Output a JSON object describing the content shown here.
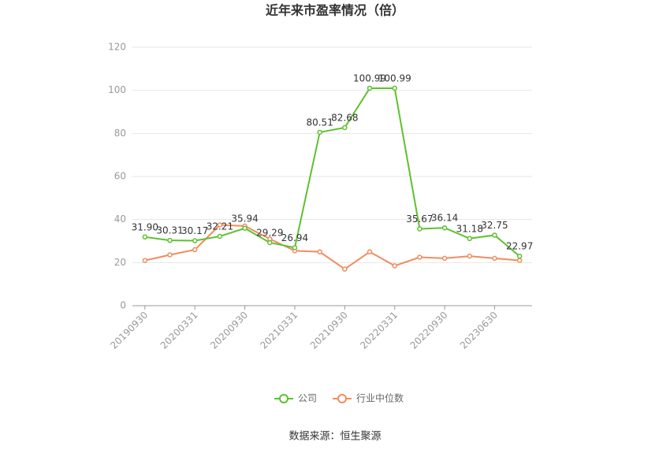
{
  "chart_data": {
    "type": "line",
    "title": "近年来市盈率情况（倍）",
    "categories": [
      "20190930",
      null,
      "20200331",
      null,
      "20200930",
      null,
      "20210331",
      null,
      "20210930",
      null,
      "20220331",
      null,
      "20220930",
      null,
      "20230630",
      null
    ],
    "series": [
      {
        "name": "公司",
        "color": "#5cc12f",
        "values": [
          31.9,
          30.31,
          30.17,
          32.21,
          35.94,
          29.29,
          26.94,
          80.51,
          82.68,
          100.99,
          100.99,
          35.67,
          36.14,
          31.18,
          32.75,
          22.97
        ],
        "value_labels": [
          "31.90",
          "30.31",
          "30.17",
          "32.21",
          "35.94",
          "29.29",
          "26.94",
          "80.51",
          "82.68",
          "100.99",
          "100.99",
          "35.67",
          "36.14",
          "31.18",
          "32.75",
          "22.97"
        ]
      },
      {
        "name": "行业中位数",
        "color": "#f08c5e",
        "values": [
          21,
          23.6,
          26,
          37.5,
          37,
          31,
          25.5,
          25,
          17,
          25,
          18.5,
          22.5,
          22,
          23,
          22,
          21
        ]
      }
    ],
    "ylim": [
      0,
      120
    ],
    "yticks": [
      0,
      20,
      40,
      60,
      80,
      100,
      120
    ],
    "grid": true,
    "legend": "bottom",
    "source": "数据来源：恒生聚源"
  }
}
